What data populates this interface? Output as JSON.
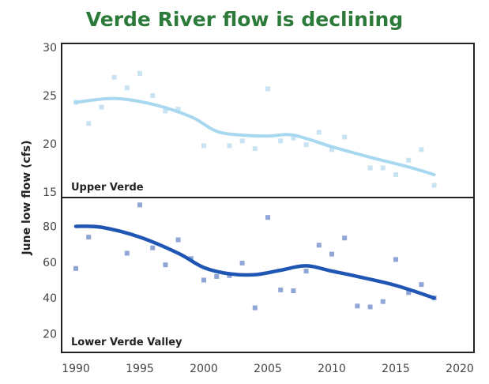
{
  "chart_data": {
    "type": "scatter",
    "title": "Verde River flow is declining",
    "ylabel": "June low flow (cfs)",
    "xlabel": "",
    "xlim": [
      1990,
      2020
    ],
    "xticks": [
      1990,
      1995,
      2000,
      2005,
      2010,
      2015,
      2020
    ],
    "grid": false,
    "panels": [
      {
        "name": "Upper Verde",
        "ylim": [
          15,
          30
        ],
        "yticks": [
          15,
          20,
          25,
          30
        ],
        "point_color": "#c9e3f3",
        "trend_color": "#a8d8f0",
        "points": {
          "x": [
            1990,
            1991,
            1992,
            1993,
            1994,
            1995,
            1996,
            1997,
            1998,
            2000,
            2002,
            2003,
            2004,
            2005,
            2006,
            2007,
            2008,
            2009,
            2010,
            2011,
            2013,
            2014,
            2015,
            2016,
            2017,
            2018
          ],
          "y": [
            24.3,
            22.1,
            23.8,
            26.9,
            25.8,
            27.3,
            25.0,
            23.4,
            23.6,
            19.8,
            19.8,
            20.3,
            19.5,
            25.7,
            20.3,
            20.6,
            19.9,
            21.2,
            19.4,
            20.7,
            17.5,
            17.5,
            16.8,
            18.3,
            19.4,
            15.7
          ]
        },
        "trend": {
          "x": [
            1990,
            1993,
            1996,
            1999,
            2001,
            2003,
            2005,
            2007,
            2010,
            2013,
            2016,
            2018
          ],
          "y": [
            24.3,
            24.7,
            24.1,
            22.8,
            21.3,
            20.9,
            20.8,
            20.9,
            19.7,
            18.6,
            17.6,
            16.8
          ]
        }
      },
      {
        "name": "Lower Verde Valley",
        "ylim": [
          14,
          97
        ],
        "yticks": [
          20,
          40,
          60,
          80
        ],
        "point_color": "#8fa6d6",
        "trend_color": "#1f56b3",
        "points": {
          "x": [
            1990,
            1991,
            1994,
            1995,
            1996,
            1997,
            1998,
            1999,
            2000,
            2001,
            2002,
            2003,
            2004,
            2005,
            2006,
            2007,
            2008,
            2009,
            2010,
            2011,
            2012,
            2013,
            2014,
            2015,
            2016,
            2017,
            2018
          ],
          "y": [
            56.5,
            74,
            65,
            92,
            68,
            58.5,
            72.5,
            62,
            50,
            52,
            52.5,
            59.5,
            34.5,
            85,
            44.5,
            44,
            55,
            69.5,
            64.5,
            73.5,
            35.5,
            35,
            38,
            61.5,
            43,
            47.5,
            40
          ]
        },
        "trend": {
          "x": [
            1990,
            1992,
            1995,
            1998,
            2000,
            2002,
            2004,
            2006,
            2008,
            2010,
            2012,
            2015,
            2018
          ],
          "y": [
            80,
            79.5,
            74,
            65,
            57,
            53.5,
            53,
            55.5,
            58,
            55,
            52,
            47,
            40
          ]
        }
      }
    ]
  }
}
